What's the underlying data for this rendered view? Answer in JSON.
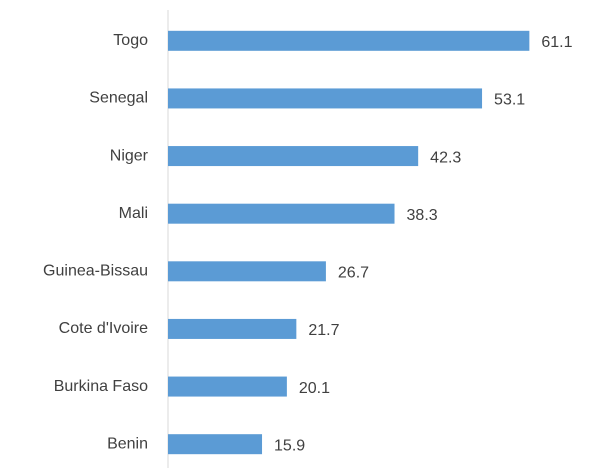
{
  "chart_data": {
    "type": "bar",
    "orientation": "horizontal",
    "categories": [
      "Togo",
      "Senegal",
      "Niger",
      "Mali",
      "Guinea-Bissau",
      "Cote d'Ivoire",
      "Burkina Faso",
      "Benin"
    ],
    "values": [
      61.1,
      53.1,
      42.3,
      38.3,
      26.7,
      21.7,
      20.1,
      15.9
    ],
    "color": "#5b9bd5",
    "xlim": [
      0,
      70
    ],
    "grid": false
  }
}
